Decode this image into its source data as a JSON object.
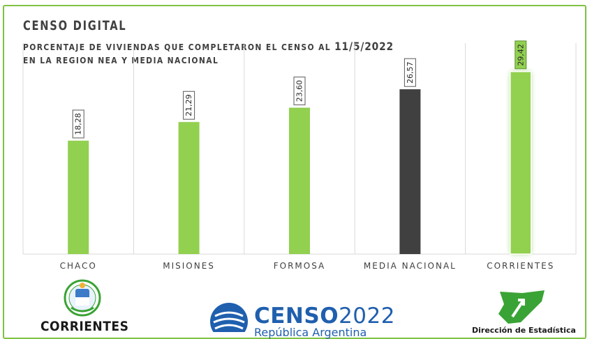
{
  "header": {
    "title": "CENSO DIGITAL",
    "subtitle_line1_prefix": "PORCENTAJE DE VIVIENDAS QUE COMPLETARON EL CENSO AL",
    "subtitle_line1_date": "11/5/2022",
    "subtitle_line2": "EN LA REGION NEA Y MEDIA NACIONAL"
  },
  "chart_data": {
    "type": "bar",
    "title": "CENSO DIGITAL",
    "subtitle": "PORCENTAJE DE VIVIENDAS QUE COMPLETARON EL CENSO AL 11/5/2022 EN LA REGION NEA Y MEDIA NACIONAL",
    "categories": [
      "CHACO",
      "MISIONES",
      "FORMOSA",
      "MEDIA NACIONAL",
      "CORRIENTES"
    ],
    "values": [
      18.28,
      21.29,
      23.6,
      26.57,
      29.42
    ],
    "value_labels": [
      "18,28",
      "21,29",
      "23,60",
      "26,57",
      "29,42"
    ],
    "bar_colors": [
      "#92d050",
      "#92d050",
      "#92d050",
      "#404040",
      "#92d050"
    ],
    "highlighted": "CORRIENTES",
    "ylim": [
      0,
      34
    ],
    "grid": "vertical separators",
    "legend": "none"
  },
  "logos": {
    "corrientes_text": "CORRIENTES",
    "censo_text": "CENSO",
    "censo_year": "2022",
    "censo_sub": "República Argentina",
    "direccion_text": "Dirección de Estadística"
  },
  "colors": {
    "frame": "#7dc242",
    "bar_green": "#92d050",
    "bar_dark": "#404040",
    "censo_blue": "#1f5fae"
  }
}
